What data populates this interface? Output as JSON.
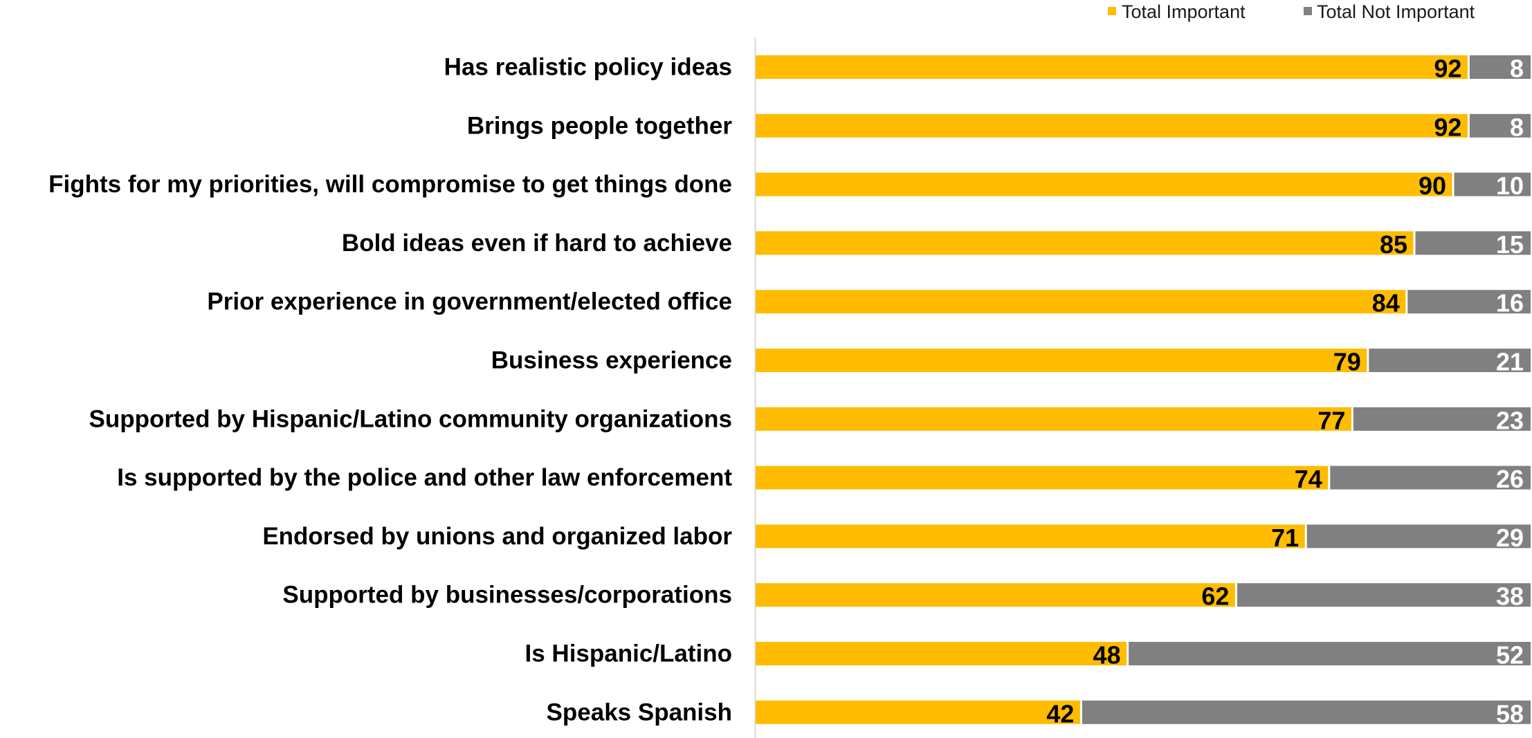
{
  "chart_data": {
    "type": "bar",
    "orientation": "horizontal",
    "stacked": true,
    "categories": [
      "Has realistic policy ideas",
      "Brings people together",
      "Fights for my priorities, will compromise to get things done",
      "Bold ideas even if hard to achieve",
      "Prior experience in government/elected office",
      "Business experience",
      "Supported by Hispanic/Latino community organizations",
      "Is supported by the police and other law enforcement",
      "Endorsed by unions and organized labor",
      "Supported by businesses/corporations",
      "Is Hispanic/Latino",
      "Speaks Spanish"
    ],
    "series": [
      {
        "name": "Total Important",
        "color": "#FFBC00",
        "label_color": "#000000",
        "values": [
          92,
          92,
          90,
          85,
          84,
          79,
          77,
          74,
          71,
          62,
          48,
          42
        ]
      },
      {
        "name": "Total Not Important",
        "color": "#808080",
        "label_color": "#ffffff",
        "values": [
          8,
          8,
          10,
          15,
          16,
          21,
          23,
          26,
          29,
          38,
          52,
          58
        ]
      }
    ],
    "xlim": [
      0,
      100
    ],
    "title": "",
    "xlabel": "",
    "ylabel": "",
    "grid": false,
    "legend_position": "top-right",
    "colors": {
      "axis_line": "#D9D9D9"
    }
  }
}
